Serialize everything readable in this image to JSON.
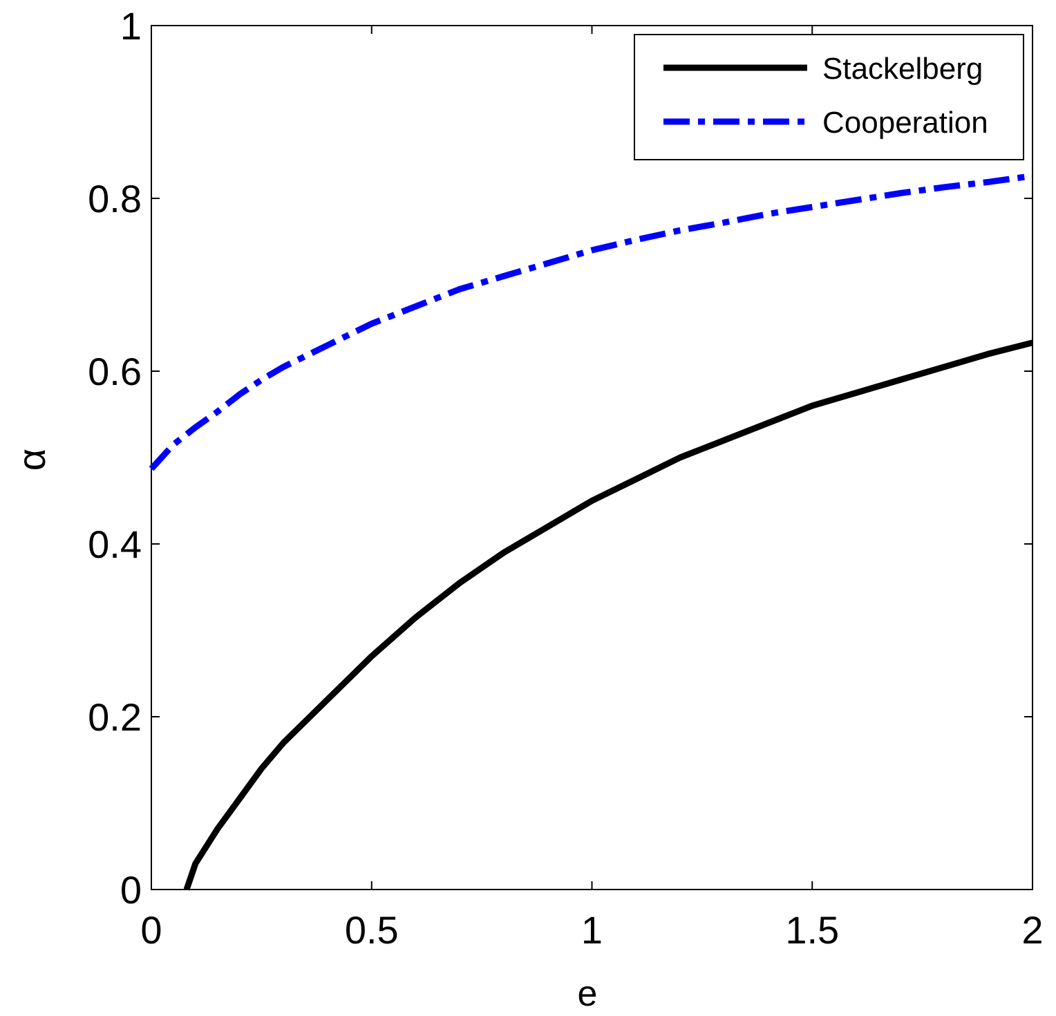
{
  "chart_data": {
    "type": "line",
    "xlabel": "e",
    "ylabel": "α",
    "xlim": [
      0,
      2
    ],
    "ylim": [
      0,
      1
    ],
    "x_ticks": [
      "0",
      "0.5",
      "1",
      "1.5",
      "2"
    ],
    "y_ticks": [
      "0",
      "0.2",
      "0.4",
      "0.6",
      "0.8",
      "1"
    ],
    "grid": false,
    "legend_position": "top-right",
    "series": [
      {
        "name": "Stackelberg",
        "color": "#000000",
        "style": "solid",
        "x": [
          0.08,
          0.1,
          0.15,
          0.2,
          0.25,
          0.3,
          0.35,
          0.4,
          0.5,
          0.6,
          0.7,
          0.8,
          0.9,
          1.0,
          1.1,
          1.2,
          1.3,
          1.4,
          1.5,
          1.6,
          1.7,
          1.8,
          1.9,
          2.0
        ],
        "y": [
          0.0,
          0.03,
          0.07,
          0.105,
          0.14,
          0.17,
          0.195,
          0.22,
          0.27,
          0.315,
          0.355,
          0.39,
          0.42,
          0.45,
          0.475,
          0.5,
          0.52,
          0.54,
          0.56,
          0.575,
          0.59,
          0.605,
          0.62,
          0.633
        ]
      },
      {
        "name": "Cooperation",
        "color": "#0000ff",
        "style": "dash-dot",
        "x": [
          0.0,
          0.05,
          0.1,
          0.15,
          0.2,
          0.25,
          0.3,
          0.4,
          0.5,
          0.6,
          0.7,
          0.8,
          0.9,
          1.0,
          1.1,
          1.2,
          1.3,
          1.4,
          1.5,
          1.6,
          1.7,
          1.8,
          1.9,
          2.0
        ],
        "y": [
          0.487,
          0.515,
          0.535,
          0.553,
          0.573,
          0.59,
          0.605,
          0.63,
          0.655,
          0.675,
          0.695,
          0.71,
          0.725,
          0.74,
          0.752,
          0.763,
          0.772,
          0.782,
          0.79,
          0.798,
          0.806,
          0.813,
          0.819,
          0.826
        ]
      }
    ]
  }
}
